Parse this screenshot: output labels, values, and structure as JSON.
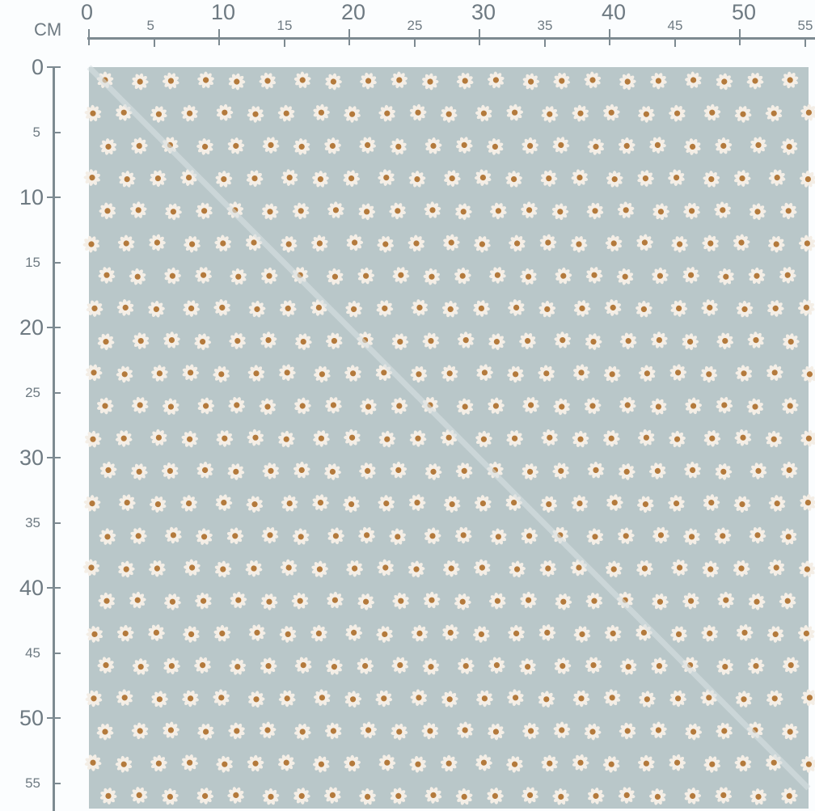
{
  "ruler": {
    "unit": "CM",
    "top_labels": [
      "0",
      "5",
      "10",
      "15",
      "20",
      "25",
      "30",
      "35",
      "40",
      "45",
      "50",
      "55"
    ],
    "left_labels": [
      "0",
      "5",
      "10",
      "15",
      "20",
      "25",
      "30",
      "35",
      "40",
      "45",
      "50",
      "55"
    ]
  },
  "swatch": {
    "background_color": "#b9c7c9",
    "petal_color": "#f4eee6",
    "center_color": "#b47a3c",
    "highlight_color": "#d8e0e2",
    "motif": "daisy-flower-icon"
  }
}
